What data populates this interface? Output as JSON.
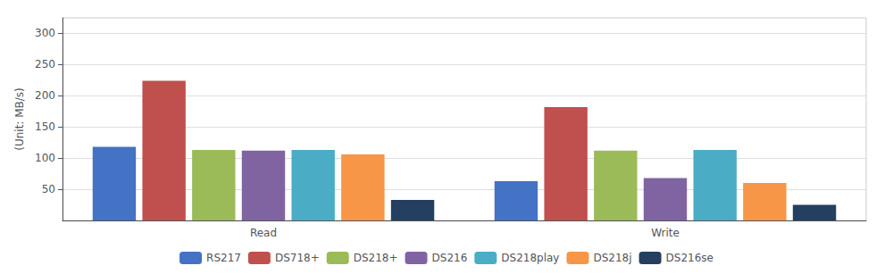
{
  "chart_data": {
    "type": "bar",
    "categories": [
      "Read",
      "Write"
    ],
    "series": [
      {
        "name": "RS217",
        "color": "#4472c4",
        "values": [
          118,
          63
        ]
      },
      {
        "name": "DS718+",
        "color": "#c0504d",
        "values": [
          224,
          182
        ]
      },
      {
        "name": "DS218+",
        "color": "#9bbb59",
        "values": [
          113,
          112
        ]
      },
      {
        "name": "DS216",
        "color": "#8064a2",
        "values": [
          112,
          68
        ]
      },
      {
        "name": "DS218play",
        "color": "#4bacc6",
        "values": [
          113,
          113
        ]
      },
      {
        "name": "DS218j",
        "color": "#f79646",
        "values": [
          106,
          60
        ]
      },
      {
        "name": "DS216se",
        "color": "#243f60",
        "values": [
          33,
          25
        ]
      }
    ],
    "ylabel": "(Unit: MB/s)",
    "ylim": [
      0,
      325
    ],
    "yticks": [
      50,
      100,
      150,
      200,
      250,
      300
    ],
    "grid": true,
    "legend": "bottom"
  }
}
